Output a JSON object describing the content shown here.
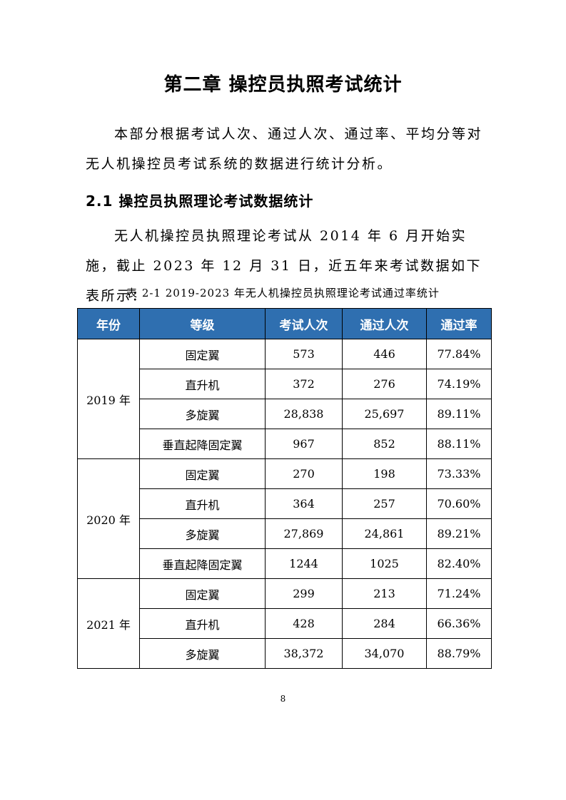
{
  "chapter_title": "第二章  操控员执照考试统计",
  "intro_paragraph": "本部分根据考试人次、通过人次、通过率、平均分等对无人机操控员考试系统的数据进行统计分析。",
  "section_title": "2.1 操控员执照理论考试数据统计",
  "section_paragraph": "无人机操控员执照理论考试从 2014 年 6 月开始实施，截止 2023 年 12 月 31 日，近五年来考试数据如下表所示：",
  "table_caption": "表 2-1  2019-2023 年无人机操控员执照理论考试通过率统计",
  "table": {
    "header_color": "#2f6fb0",
    "headers": [
      "年份",
      "等级",
      "考试人次",
      "通过人次",
      "通过率"
    ],
    "groups": [
      {
        "year": "2019 年",
        "rows": [
          [
            "固定翼",
            "573",
            "446",
            "77.84%"
          ],
          [
            "直升机",
            "372",
            "276",
            "74.19%"
          ],
          [
            "多旋翼",
            "28,838",
            "25,697",
            "89.11%"
          ],
          [
            "垂直起降固定翼",
            "967",
            "852",
            "88.11%"
          ]
        ]
      },
      {
        "year": "2020 年",
        "rows": [
          [
            "固定翼",
            "270",
            "198",
            "73.33%"
          ],
          [
            "直升机",
            "364",
            "257",
            "70.60%"
          ],
          [
            "多旋翼",
            "27,869",
            "24,861",
            "89.21%"
          ],
          [
            "垂直起降固定翼",
            "1244",
            "1025",
            "82.40%"
          ]
        ]
      },
      {
        "year": "2021 年",
        "rows": [
          [
            "固定翼",
            "299",
            "213",
            "71.24%"
          ],
          [
            "直升机",
            "428",
            "284",
            "66.36%"
          ],
          [
            "多旋翼",
            "38,372",
            "34,070",
            "88.79%"
          ]
        ]
      }
    ]
  },
  "page_number": "8"
}
